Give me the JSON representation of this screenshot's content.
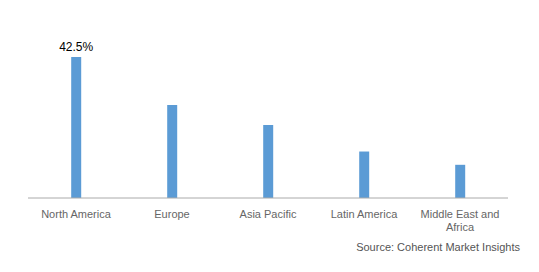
{
  "chart_data": {
    "type": "bar",
    "categories": [
      "North America",
      "Europe",
      "Asia Pacific",
      "Latin America",
      "Middle East and\nAfrica"
    ],
    "values": [
      42.5,
      28.0,
      22.0,
      14.0,
      10.0
    ],
    "color": "#5B9BD5",
    "ylim": [
      0,
      50
    ],
    "tick_labels": "x",
    "grid": false,
    "data_labels": true,
    "value_labels": [
      "42.5%",
      null,
      null,
      null,
      null
    ],
    "source": "Source: Coherent Market Insights"
  }
}
